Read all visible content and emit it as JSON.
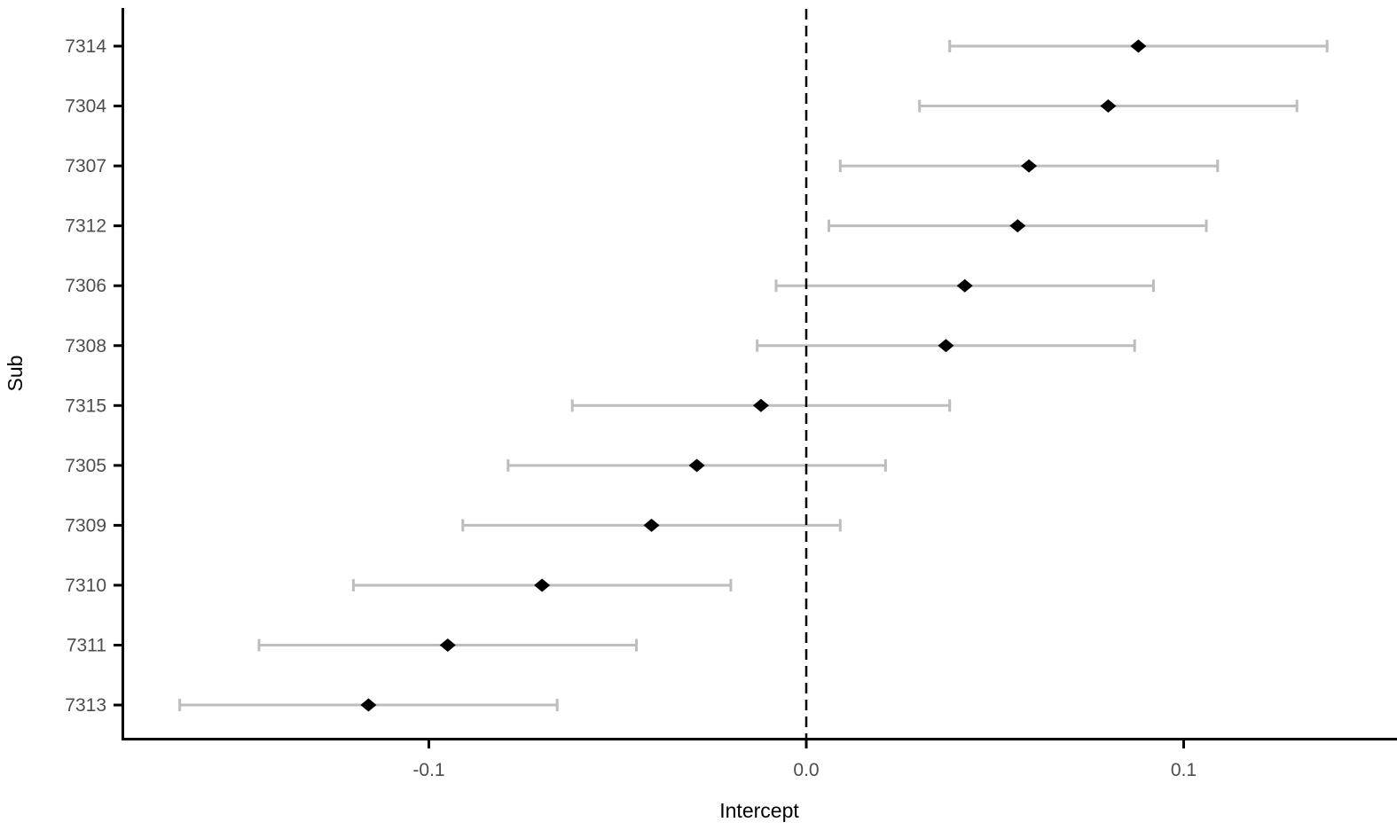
{
  "chart_data": {
    "type": "scatter",
    "subtype": "pointrange-forest-plot",
    "title": "",
    "xlabel": "Intercept",
    "ylabel": "Sub",
    "xlim": [
      -0.181,
      0.157
    ],
    "grid": "off",
    "legend": "none",
    "reference_line": {
      "x": 0.0,
      "style": "dashed",
      "color": "#000000"
    },
    "x_ticks": [
      {
        "value": -0.1,
        "label": "-0.1"
      },
      {
        "value": 0.0,
        "label": "0.0"
      },
      {
        "value": 0.1,
        "label": "0.1"
      }
    ],
    "rows": [
      {
        "sub": "7314",
        "estimate": 0.088,
        "lower": 0.038,
        "upper": 0.138
      },
      {
        "sub": "7304",
        "estimate": 0.08,
        "lower": 0.03,
        "upper": 0.13
      },
      {
        "sub": "7307",
        "estimate": 0.059,
        "lower": 0.009,
        "upper": 0.109
      },
      {
        "sub": "7312",
        "estimate": 0.056,
        "lower": 0.006,
        "upper": 0.106
      },
      {
        "sub": "7306",
        "estimate": 0.042,
        "lower": -0.008,
        "upper": 0.092
      },
      {
        "sub": "7308",
        "estimate": 0.037,
        "lower": -0.013,
        "upper": 0.087
      },
      {
        "sub": "7315",
        "estimate": -0.012,
        "lower": -0.062,
        "upper": 0.038
      },
      {
        "sub": "7305",
        "estimate": -0.029,
        "lower": -0.079,
        "upper": 0.021
      },
      {
        "sub": "7309",
        "estimate": -0.041,
        "lower": -0.091,
        "upper": 0.009
      },
      {
        "sub": "7310",
        "estimate": -0.07,
        "lower": -0.12,
        "upper": -0.02
      },
      {
        "sub": "7311",
        "estimate": -0.095,
        "lower": -0.145,
        "upper": -0.045
      },
      {
        "sub": "7313",
        "estimate": -0.116,
        "lower": -0.166,
        "upper": -0.066
      }
    ],
    "colors": {
      "point": "#000000",
      "error_bar": "#BDBDBD",
      "axis_line": "#000000",
      "tick_label": "#4D4D4D",
      "axis_title": "#000000",
      "background": "#FFFFFF"
    }
  }
}
